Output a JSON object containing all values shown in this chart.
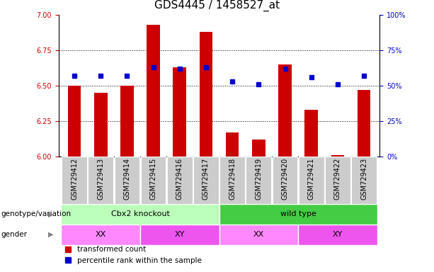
{
  "title": "GDS4445 / 1458527_at",
  "samples": [
    "GSM729412",
    "GSM729413",
    "GSM729414",
    "GSM729415",
    "GSM729416",
    "GSM729417",
    "GSM729418",
    "GSM729419",
    "GSM729420",
    "GSM729421",
    "GSM729422",
    "GSM729423"
  ],
  "red_values": [
    6.5,
    6.45,
    6.5,
    6.93,
    6.63,
    6.88,
    6.17,
    6.12,
    6.65,
    6.33,
    6.01,
    6.47
  ],
  "blue_values": [
    57,
    57,
    57,
    63,
    62,
    63,
    53,
    51,
    62,
    56,
    51,
    57
  ],
  "ylim_left": [
    6.0,
    7.0
  ],
  "ylim_right": [
    0,
    100
  ],
  "yticks_left": [
    6.0,
    6.25,
    6.5,
    6.75,
    7.0
  ],
  "yticks_right": [
    0,
    25,
    50,
    75,
    100
  ],
  "grid_at": [
    6.25,
    6.5,
    6.75
  ],
  "bar_color": "#cc0000",
  "dot_color": "#0000cc",
  "bar_bottom": 6.0,
  "genotype_groups": [
    {
      "label": "Cbx2 knockout",
      "start": 0,
      "end": 6,
      "color": "#bbffbb"
    },
    {
      "label": "wild type",
      "start": 6,
      "end": 12,
      "color": "#44cc44"
    }
  ],
  "gender_groups": [
    {
      "label": "XX",
      "start": 0,
      "end": 3,
      "color": "#ff88ff"
    },
    {
      "label": "XY",
      "start": 3,
      "end": 6,
      "color": "#ee55ee"
    },
    {
      "label": "XX",
      "start": 6,
      "end": 9,
      "color": "#ff88ff"
    },
    {
      "label": "XY",
      "start": 9,
      "end": 12,
      "color": "#ee55ee"
    }
  ],
  "legend_items": [
    {
      "label": "transformed count",
      "color": "#cc0000"
    },
    {
      "label": "percentile rank within the sample",
      "color": "#0000cc"
    }
  ],
  "bar_width": 0.5,
  "bar_color_left_axis": "#cc0000",
  "right_axis_color": "#0000cc",
  "xtick_box_color": "#cccccc",
  "title_fontsize": 11,
  "tick_fontsize": 7,
  "label_fontsize": 7.5,
  "annot_fontsize": 8
}
